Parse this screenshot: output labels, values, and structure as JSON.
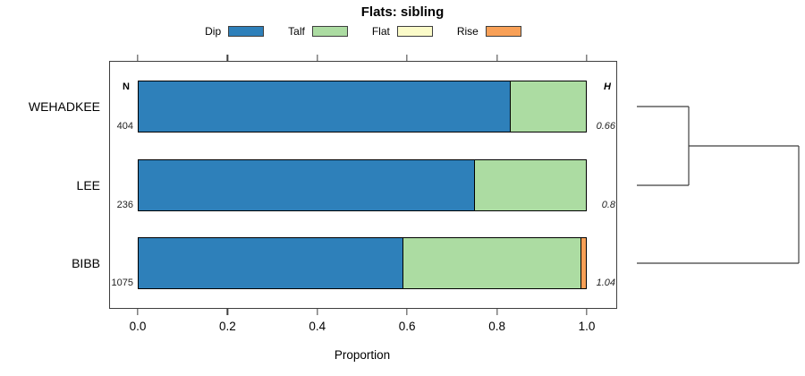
{
  "title": "Flats: sibling",
  "legend": [
    {
      "label": "Dip",
      "color": "#2E80BA"
    },
    {
      "label": "Talf",
      "color": "#ACDCA2"
    },
    {
      "label": "Flat",
      "color": "#FBFBC9"
    },
    {
      "label": "Rise",
      "color": "#F8A057"
    }
  ],
  "axis": {
    "xlabel": "Proportion",
    "ticks": [
      {
        "label": "0.0",
        "value": 0.0
      },
      {
        "label": "0.2",
        "value": 0.2
      },
      {
        "label": "0.4",
        "value": 0.4
      },
      {
        "label": "0.6",
        "value": 0.6
      },
      {
        "label": "0.8",
        "value": 0.8
      },
      {
        "label": "1.0",
        "value": 1.0
      }
    ]
  },
  "table_headers": {
    "n": "N",
    "h": "H"
  },
  "chart_data": {
    "type": "bar",
    "stacked": true,
    "orientation": "horizontal",
    "title": "Flats: sibling",
    "xlabel": "Proportion",
    "xlim": [
      0,
      1
    ],
    "grid": false,
    "legend_position": "top",
    "categories": [
      "WEHADKEE",
      "LEE",
      "BIBB"
    ],
    "n_values": [
      "404",
      "236",
      "1075"
    ],
    "h_values": [
      "0.66",
      "0.8",
      "1.04"
    ],
    "series": [
      {
        "name": "Dip",
        "color": "#2E80BA",
        "values": [
          0.83,
          0.75,
          0.59
        ]
      },
      {
        "name": "Talf",
        "color": "#ACDCA2",
        "values": [
          0.17,
          0.25,
          0.397
        ]
      },
      {
        "name": "Flat",
        "color": "#FBFBC9",
        "values": [
          0,
          0,
          0
        ]
      },
      {
        "name": "Rise",
        "color": "#F8A057",
        "values": [
          0,
          0,
          0.013
        ]
      }
    ]
  },
  "dendrogram": {
    "present": true,
    "join_order": [
      [
        "WEHADKEE",
        "LEE"
      ],
      [
        "WEHADKEE+LEE",
        "BIBB"
      ]
    ]
  }
}
